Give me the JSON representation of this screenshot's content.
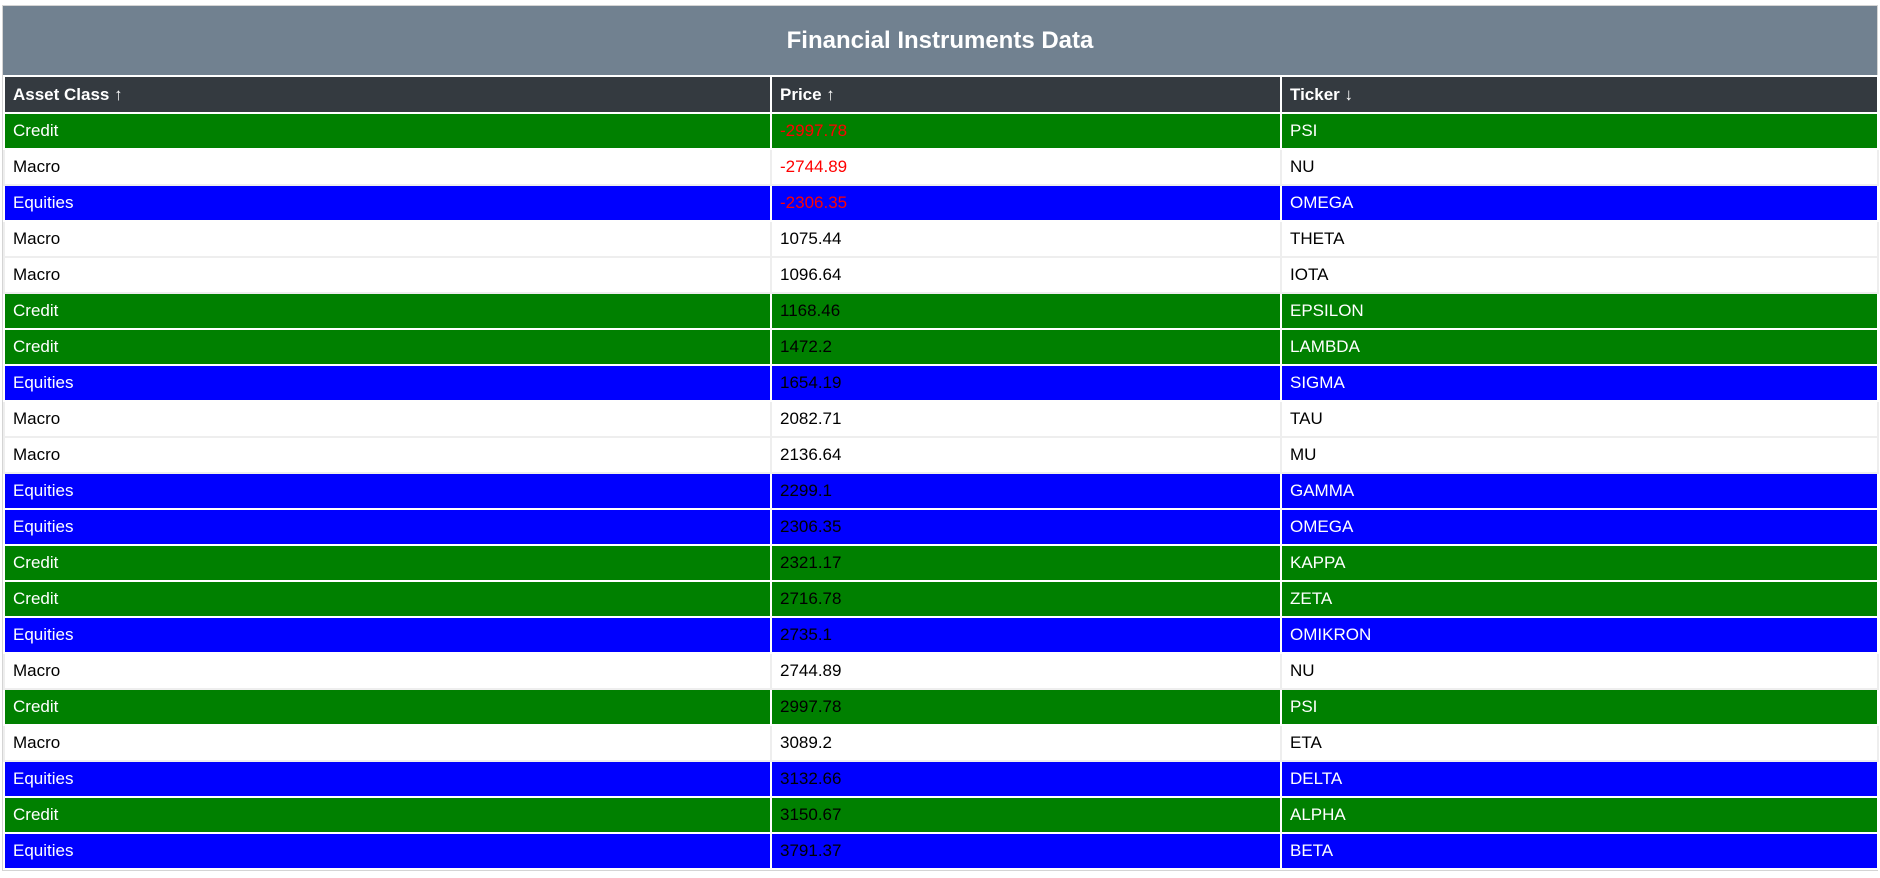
{
  "title": "Financial Instruments Data",
  "headers": {
    "asset_class": "Asset Class ↑",
    "price": "Price ↑",
    "ticker": "Ticker ↓"
  },
  "colors": {
    "header_bar": "#718190",
    "column_header": "#343a40",
    "credit": "#008000",
    "equities": "#0000ff",
    "macro": "#ffffff",
    "negative_price": "#ff0000"
  },
  "rows": [
    {
      "asset_class": "Credit",
      "price": "-2997.78",
      "ticker": "PSI"
    },
    {
      "asset_class": "Macro",
      "price": "-2744.89",
      "ticker": "NU"
    },
    {
      "asset_class": "Equities",
      "price": "-2306.35",
      "ticker": "OMEGA"
    },
    {
      "asset_class": "Macro",
      "price": "1075.44",
      "ticker": "THETA"
    },
    {
      "asset_class": "Macro",
      "price": "1096.64",
      "ticker": "IOTA"
    },
    {
      "asset_class": "Credit",
      "price": "1168.46",
      "ticker": "EPSILON"
    },
    {
      "asset_class": "Credit",
      "price": "1472.2",
      "ticker": "LAMBDA"
    },
    {
      "asset_class": "Equities",
      "price": "1654.19",
      "ticker": "SIGMA"
    },
    {
      "asset_class": "Macro",
      "price": "2082.71",
      "ticker": "TAU"
    },
    {
      "asset_class": "Macro",
      "price": "2136.64",
      "ticker": "MU"
    },
    {
      "asset_class": "Equities",
      "price": "2299.1",
      "ticker": "GAMMA"
    },
    {
      "asset_class": "Equities",
      "price": "2306.35",
      "ticker": "OMEGA"
    },
    {
      "asset_class": "Credit",
      "price": "2321.17",
      "ticker": "KAPPA"
    },
    {
      "asset_class": "Credit",
      "price": "2716.78",
      "ticker": "ZETA"
    },
    {
      "asset_class": "Equities",
      "price": "2735.1",
      "ticker": "OMIKRON"
    },
    {
      "asset_class": "Macro",
      "price": "2744.89",
      "ticker": "NU"
    },
    {
      "asset_class": "Credit",
      "price": "2997.78",
      "ticker": "PSI"
    },
    {
      "asset_class": "Macro",
      "price": "3089.2",
      "ticker": "ETA"
    },
    {
      "asset_class": "Equities",
      "price": "3132.66",
      "ticker": "DELTA"
    },
    {
      "asset_class": "Credit",
      "price": "3150.67",
      "ticker": "ALPHA"
    },
    {
      "asset_class": "Equities",
      "price": "3791.37",
      "ticker": "BETA"
    }
  ]
}
